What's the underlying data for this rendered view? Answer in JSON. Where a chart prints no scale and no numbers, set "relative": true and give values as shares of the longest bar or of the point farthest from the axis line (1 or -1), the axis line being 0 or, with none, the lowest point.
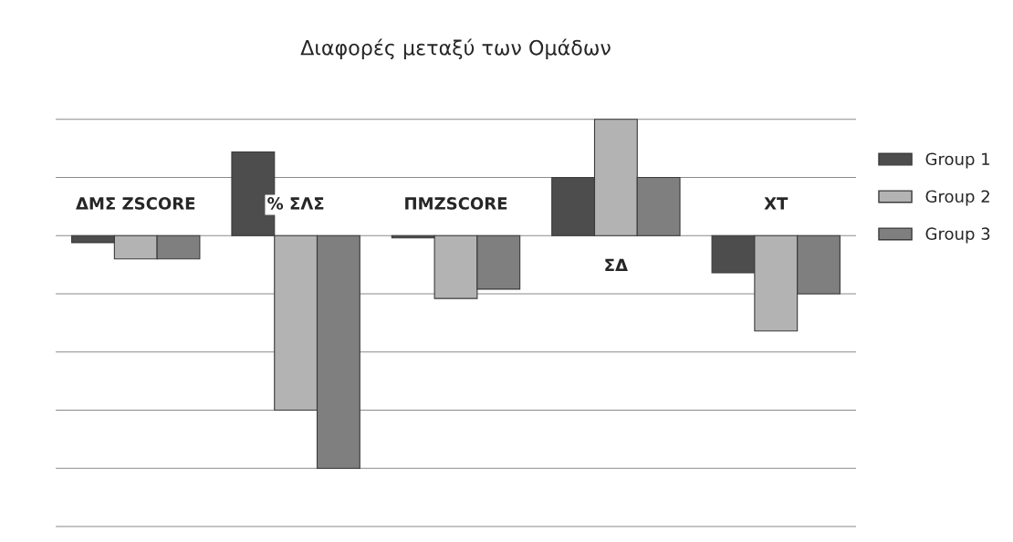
{
  "chart_data": {
    "type": "bar",
    "title": "Διαφορές μεταξύ των Ομάδων",
    "relative": true,
    "categories": [
      "ΔΜΣ ZSCORE",
      "% ΣΛΣ",
      "ΠΜZSCORE",
      "ΣΔ",
      "ΧΤ"
    ],
    "series": [
      {
        "name": "Group 1",
        "color": "#4d4d4d",
        "values": [
          -0.03,
          0.36,
          -0.01,
          0.25,
          -0.16
        ]
      },
      {
        "name": "Group 2",
        "color": "#b3b3b3",
        "values": [
          -0.1,
          -0.75,
          -0.27,
          0.5,
          -0.41
        ]
      },
      {
        "name": "Group 3",
        "color": "#7f7f7f",
        "values": [
          -0.1,
          -1,
          -0.23,
          0.25,
          -0.25
        ]
      }
    ],
    "grid": "y",
    "legend": "right"
  }
}
